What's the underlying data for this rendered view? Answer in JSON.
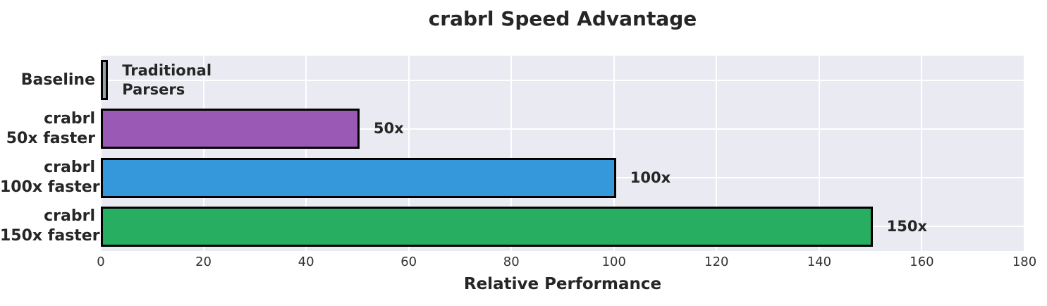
{
  "chart_data": {
    "type": "bar",
    "orientation": "horizontal",
    "title": "crabrl Speed Advantage",
    "xlabel": "Relative Performance",
    "ylabel": "",
    "categories": [
      "Baseline",
      "crabrl\n50x faster",
      "crabrl\n100x faster",
      "crabrl\n150x faster"
    ],
    "values": [
      1,
      50,
      100,
      150
    ],
    "bar_labels": [
      "Traditional\nParsers",
      "50x",
      "100x",
      "150x"
    ],
    "bar_colors": [
      "#95a5a6",
      "#9b59b6",
      "#3498db",
      "#27ae60"
    ],
    "bar_edge_color": "#000000",
    "xlim": [
      0,
      180
    ],
    "xticks": [
      0,
      20,
      40,
      60,
      80,
      100,
      120,
      140,
      160,
      180
    ],
    "grid": true,
    "legend_position": "none",
    "plot_background": "#eaeaf2",
    "grid_color": "#ffffff",
    "title_color": "#262626",
    "tick_label_color": "#333333"
  }
}
